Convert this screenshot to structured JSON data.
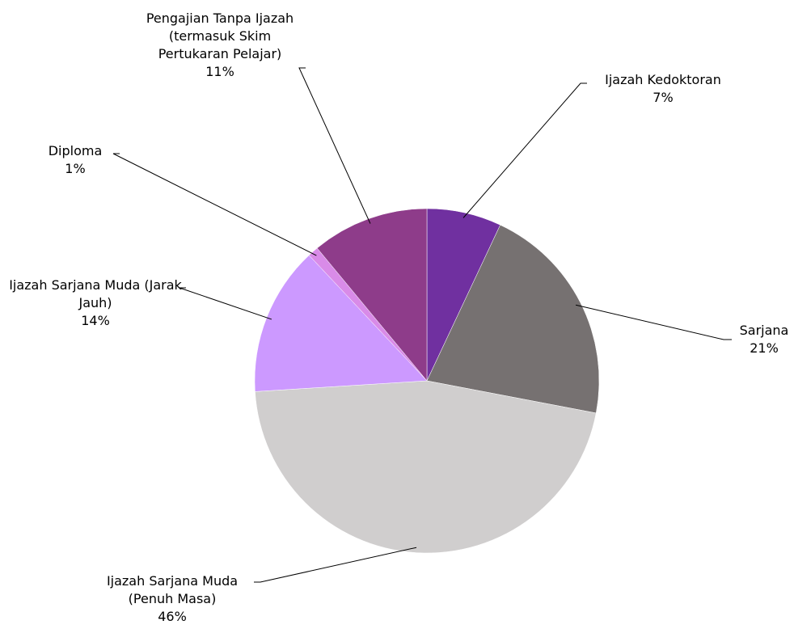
{
  "chart_data": {
    "type": "pie",
    "categories": [
      "Ijazah Kedoktoran",
      "Sarjana",
      "Ijazah Sarjana Muda (Penuh Masa)",
      "Ijazah Sarjana Muda (Jarak Jauh)",
      "Diploma",
      "Pengajian Tanpa Ijazah (termasuk Skim Pertukaran Pelajar)"
    ],
    "values": [
      7,
      21,
      46,
      14,
      1,
      11
    ],
    "value_labels": [
      "7%",
      "21%",
      "46%",
      "14%",
      "1%",
      "11%"
    ],
    "colors": [
      "#7030a0",
      "#767171",
      "#d0cece",
      "#cc99ff",
      "#d98be8",
      "#8e3c8a"
    ]
  }
}
